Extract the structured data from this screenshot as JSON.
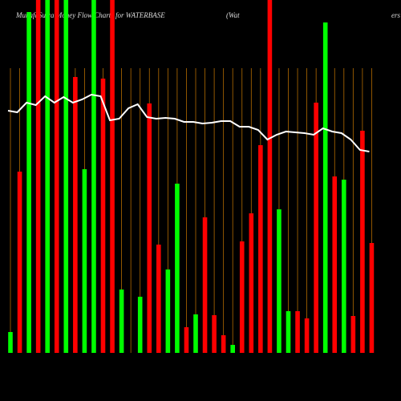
{
  "chart_data": {
    "type": "bar",
    "title": "MunafaSutra  Money Flow Charts for WATERBASE",
    "subtitle": "(Wat",
    "corner_text": "ers",
    "categories": [
      null,
      null,
      null,
      null,
      null,
      null,
      null,
      null,
      null,
      null,
      null,
      null,
      null,
      null,
      null,
      null,
      null,
      null,
      null,
      null,
      null,
      null,
      null,
      null,
      null,
      null,
      null,
      null,
      null,
      null,
      null,
      null,
      null,
      null,
      null,
      null,
      null,
      null,
      null,
      null
    ],
    "values": [
      26,
      226,
      425,
      440,
      440,
      440,
      440,
      344,
      229,
      440,
      342,
      440,
      79,
      null,
      70,
      311,
      135,
      104,
      211,
      32,
      48,
      169,
      47,
      22,
      10,
      139,
      174,
      259,
      440,
      179,
      52,
      52,
      43,
      312,
      412,
      220,
      216,
      46,
      277,
      137
    ],
    "colors": [
      "#00ff00",
      "#ff0000",
      "#00ff00",
      "#ff0000",
      "#00ff00",
      "#ff0000",
      "#00ff00",
      "#ff0000",
      "#00ff00",
      "#00ff00",
      "#ff0000",
      "#ff0000",
      "#00ff00",
      "#00ff00",
      "#00ff00",
      "#ff0000",
      "#ff0000",
      "#00ff00",
      "#00ff00",
      "#ff0000",
      "#00ff00",
      "#ff0000",
      "#ff0000",
      "#ff0000",
      "#00ff00",
      "#ff0000",
      "#ff0000",
      "#ff0000",
      "#ff0000",
      "#00ff00",
      "#00ff00",
      "#ff0000",
      "#ff0000",
      "#ff0000",
      "#00ff00",
      "#ff0000",
      "#00ff00",
      "#ff0000",
      "#ff0000",
      "#ff0000"
    ],
    "line": {
      "color": "#ffffff",
      "values": [
        302,
        300,
        312,
        309,
        320,
        312,
        319,
        312,
        316,
        322,
        320,
        290,
        292,
        305,
        310,
        294,
        292,
        293,
        292,
        288,
        288,
        286,
        287,
        289,
        289,
        282,
        282,
        278,
        266,
        272,
        276,
        275,
        274,
        272,
        280,
        276,
        274,
        266,
        253,
        251
      ]
    },
    "grid_color": "#b36b00",
    "ylim": [
      0,
      440
    ]
  }
}
